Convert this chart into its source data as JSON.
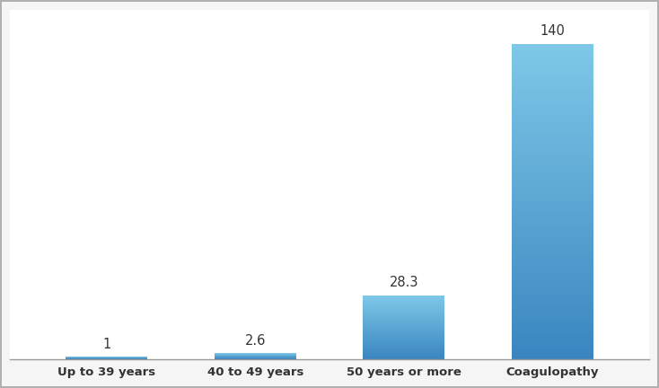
{
  "categories": [
    "Up to 39 years",
    "40 to 49 years",
    "50 years or more",
    "Coagulopathy"
  ],
  "values": [
    1,
    2.6,
    28.3,
    140
  ],
  "value_labels": [
    "1",
    "2.6",
    "28.3",
    "140"
  ],
  "bar_color_top": [
    "#7ec8e8",
    "#7ec8e8",
    "#7ec8e8",
    "#7ec8e8"
  ],
  "bar_color_bottom": [
    "#3a85c0",
    "#3a85c0",
    "#3a85c0",
    "#3a85c0"
  ],
  "background_color": "#f5f5f5",
  "plot_bg_color": "#ffffff",
  "ylim": [
    0,
    155
  ],
  "tick_label_fontsize": 9.5,
  "value_label_fontsize": 10.5,
  "bar_width": 0.55,
  "outer_border_color": "#b0b0b0",
  "bottom_line_color": "#999999"
}
